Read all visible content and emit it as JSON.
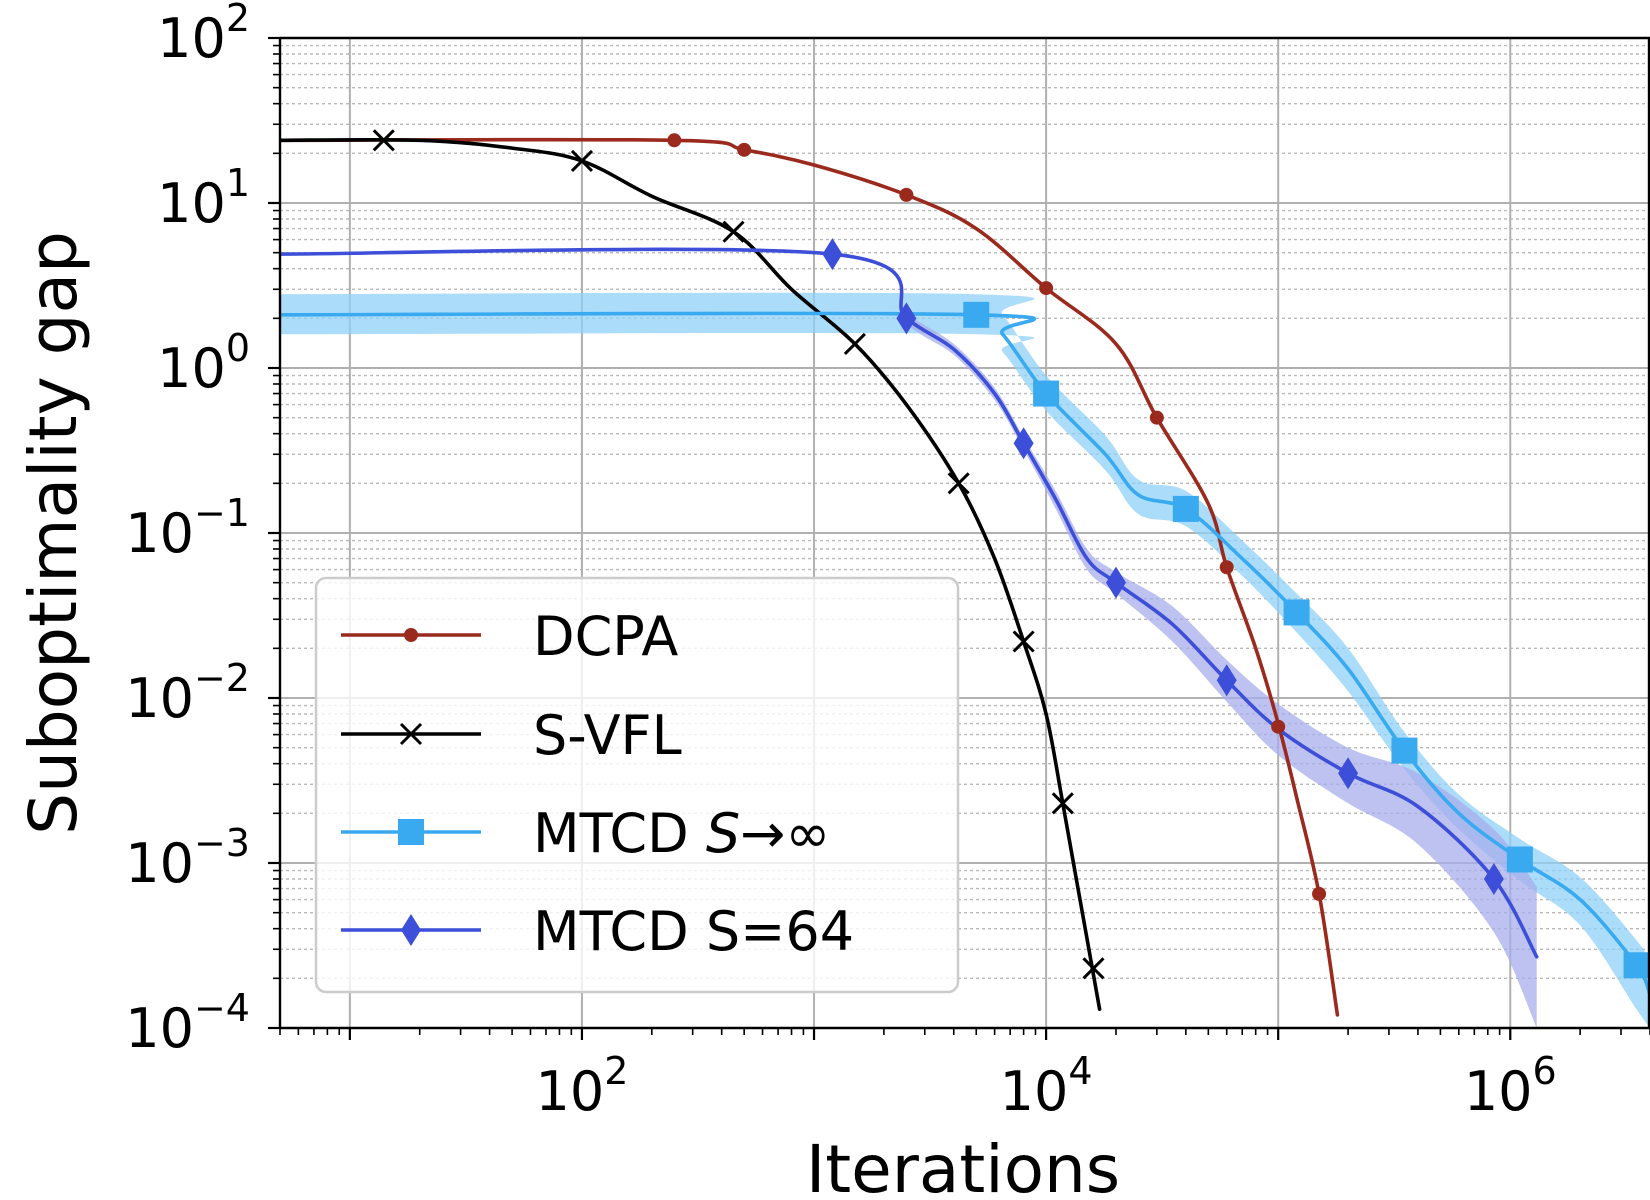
{
  "chart_data": {
    "type": "line",
    "title": "",
    "xlabel": "Iterations",
    "ylabel": "Suboptimality gap",
    "xscale": "log",
    "yscale": "log",
    "xlim": [
      5,
      4000000
    ],
    "ylim": [
      0.0001,
      100
    ],
    "grid": true,
    "x_ticks": [
      {
        "value": 100,
        "base": "10",
        "exp": "2"
      },
      {
        "value": 10000,
        "base": "10",
        "exp": "4"
      },
      {
        "value": 1000000,
        "base": "10",
        "exp": "6"
      }
    ],
    "y_ticks": [
      {
        "value": 100,
        "base": "10",
        "exp": "2"
      },
      {
        "value": 10,
        "base": "10",
        "exp": "1"
      },
      {
        "value": 1,
        "base": "10",
        "exp": "0"
      },
      {
        "value": 0.1,
        "base": "10",
        "exp": "−1"
      },
      {
        "value": 0.01,
        "base": "10",
        "exp": "−2"
      },
      {
        "value": 0.001,
        "base": "10",
        "exp": "−3"
      },
      {
        "value": 0.0001,
        "base": "10",
        "exp": "−4"
      }
    ],
    "legend": {
      "position": "lower-left",
      "entries": [
        {
          "series": "DCPA",
          "label": "DCPA"
        },
        {
          "series": "S-VFL",
          "label": "S-VFL"
        },
        {
          "series": "MTCD_inf",
          "label_prefix": "MTCD ",
          "label_italic": "S",
          "label_suffix": "→∞"
        },
        {
          "series": "MTCD_64",
          "label": "MTCD S=64"
        }
      ]
    },
    "series": [
      {
        "id": "DCPA",
        "name": "DCPA",
        "color": "#9b2a1e",
        "marker": "dot",
        "curve": [
          [
            5,
            24
          ],
          [
            250,
            24
          ],
          [
            500,
            21
          ],
          [
            1000,
            17
          ],
          [
            2500,
            11.2
          ],
          [
            5000,
            7
          ],
          [
            10000,
            3.05
          ],
          [
            20000,
            1.4
          ],
          [
            30000,
            0.5
          ],
          [
            50000,
            0.15
          ],
          [
            60000,
            0.062
          ],
          [
            80000,
            0.02
          ],
          [
            100000,
            0.007
          ],
          [
            120000,
            0.0025
          ],
          [
            150000,
            0.00065
          ],
          [
            180000,
            0.00012
          ]
        ],
        "markers": [
          [
            250,
            24
          ],
          [
            500,
            21
          ],
          [
            2500,
            11.2
          ],
          [
            10000,
            3.05
          ],
          [
            30000,
            0.5
          ],
          [
            60000,
            0.062
          ],
          [
            100000,
            0.0067
          ],
          [
            150000,
            0.00065
          ]
        ]
      },
      {
        "id": "S-VFL",
        "name": "S-VFL",
        "color": "#000000",
        "marker": "x",
        "curve": [
          [
            5,
            24
          ],
          [
            20,
            24
          ],
          [
            50,
            21.5
          ],
          [
            100,
            18
          ],
          [
            200,
            11
          ],
          [
            450,
            6.7
          ],
          [
            800,
            3
          ],
          [
            1500,
            1.4
          ],
          [
            2500,
            0.6
          ],
          [
            4200,
            0.2
          ],
          [
            6000,
            0.07
          ],
          [
            8000,
            0.022
          ],
          [
            10000,
            0.008
          ],
          [
            11800,
            0.0023
          ],
          [
            14000,
            0.0006
          ],
          [
            17000,
            0.00013
          ]
        ],
        "markers": [
          [
            14,
            24
          ],
          [
            100,
            18
          ],
          [
            450,
            6.7
          ],
          [
            1500,
            1.4
          ],
          [
            4200,
            0.2
          ],
          [
            8000,
            0.022
          ],
          [
            11800,
            0.0023
          ],
          [
            16000,
            0.00023
          ]
        ]
      },
      {
        "id": "MTCD_inf",
        "name": "MTCD S→∞",
        "color": "#3aaaf0",
        "band_color": "#8fd0f8",
        "marker": "square",
        "curve": [
          [
            5,
            2.1
          ],
          [
            5000,
            2.1
          ],
          [
            6500,
            1.6
          ],
          [
            10000,
            0.7
          ],
          [
            18000,
            0.3
          ],
          [
            25000,
            0.17
          ],
          [
            40000,
            0.14
          ],
          [
            70000,
            0.07
          ],
          [
            120000,
            0.033
          ],
          [
            200000,
            0.015
          ],
          [
            350000,
            0.0048
          ],
          [
            600000,
            0.002
          ],
          [
            1100000,
            0.00105
          ],
          [
            2000000,
            0.0006
          ],
          [
            3500000,
            0.00024
          ],
          [
            4000000,
            0.00016
          ]
        ],
        "markers": [
          [
            5000,
            2.1
          ],
          [
            10000,
            0.7
          ],
          [
            40000,
            0.14
          ],
          [
            120000,
            0.033
          ],
          [
            350000,
            0.0048
          ],
          [
            1100000,
            0.00105
          ],
          [
            3500000,
            0.00024
          ]
        ],
        "band_lower": [
          [
            5,
            1.6
          ],
          [
            5000,
            1.6
          ],
          [
            6500,
            1.25
          ],
          [
            10000,
            0.55
          ],
          [
            18000,
            0.24
          ],
          [
            25000,
            0.13
          ],
          [
            40000,
            0.11
          ],
          [
            70000,
            0.055
          ],
          [
            120000,
            0.025
          ],
          [
            200000,
            0.011
          ],
          [
            350000,
            0.0037
          ],
          [
            600000,
            0.0016
          ],
          [
            1100000,
            0.00078
          ],
          [
            2000000,
            0.00042
          ],
          [
            3500000,
            0.00013
          ],
          [
            4000000,
            0.0001
          ]
        ],
        "band_upper": [
          [
            5,
            2.8
          ],
          [
            5000,
            2.8
          ],
          [
            6500,
            2.1
          ],
          [
            10000,
            0.9
          ],
          [
            18000,
            0.39
          ],
          [
            25000,
            0.21
          ],
          [
            40000,
            0.18
          ],
          [
            70000,
            0.09
          ],
          [
            120000,
            0.043
          ],
          [
            200000,
            0.02
          ],
          [
            350000,
            0.0062
          ],
          [
            600000,
            0.0026
          ],
          [
            1100000,
            0.0014
          ],
          [
            2000000,
            0.00082
          ],
          [
            3500000,
            0.00034
          ],
          [
            4000000,
            0.00025
          ]
        ]
      },
      {
        "id": "MTCD_64",
        "name": "MTCD S=64",
        "color": "#3d4fd8",
        "band_color": "#a7adec",
        "marker": "diamond",
        "curve": [
          [
            5,
            4.9
          ],
          [
            1200,
            4.9
          ],
          [
            2500,
            2.0
          ],
          [
            4000,
            1.3
          ],
          [
            6000,
            0.7
          ],
          [
            8000,
            0.35
          ],
          [
            11000,
            0.16
          ],
          [
            15000,
            0.07
          ],
          [
            20000,
            0.05
          ],
          [
            35000,
            0.028
          ],
          [
            60000,
            0.0128
          ],
          [
            100000,
            0.0065
          ],
          [
            200000,
            0.0035
          ],
          [
            400000,
            0.0022
          ],
          [
            850000,
            0.0008
          ],
          [
            1300000,
            0.00027
          ]
        ],
        "markers": [
          [
            1200,
            4.9
          ],
          [
            2500,
            2.0
          ],
          [
            8000,
            0.35
          ],
          [
            20000,
            0.05
          ],
          [
            60000,
            0.0128
          ],
          [
            200000,
            0.0035
          ],
          [
            850000,
            0.0008
          ]
        ],
        "band_lower": [
          [
            5,
            4.9
          ],
          [
            1200,
            4.9
          ],
          [
            2500,
            1.85
          ],
          [
            4000,
            1.2
          ],
          [
            6000,
            0.64
          ],
          [
            8000,
            0.32
          ],
          [
            11000,
            0.14
          ],
          [
            15000,
            0.06
          ],
          [
            20000,
            0.043
          ],
          [
            35000,
            0.022
          ],
          [
            60000,
            0.0095
          ],
          [
            100000,
            0.0045
          ],
          [
            200000,
            0.0023
          ],
          [
            400000,
            0.0013
          ],
          [
            850000,
            0.00038
          ],
          [
            1300000,
            0.0001
          ]
        ],
        "band_upper": [
          [
            5,
            4.9
          ],
          [
            1200,
            4.9
          ],
          [
            2500,
            2.15
          ],
          [
            4000,
            1.4
          ],
          [
            6000,
            0.76
          ],
          [
            8000,
            0.38
          ],
          [
            11000,
            0.18
          ],
          [
            15000,
            0.08
          ],
          [
            20000,
            0.058
          ],
          [
            35000,
            0.036
          ],
          [
            60000,
            0.017
          ],
          [
            100000,
            0.0092
          ],
          [
            200000,
            0.005
          ],
          [
            400000,
            0.0035
          ],
          [
            850000,
            0.0016
          ],
          [
            1300000,
            0.00072
          ]
        ]
      }
    ]
  }
}
